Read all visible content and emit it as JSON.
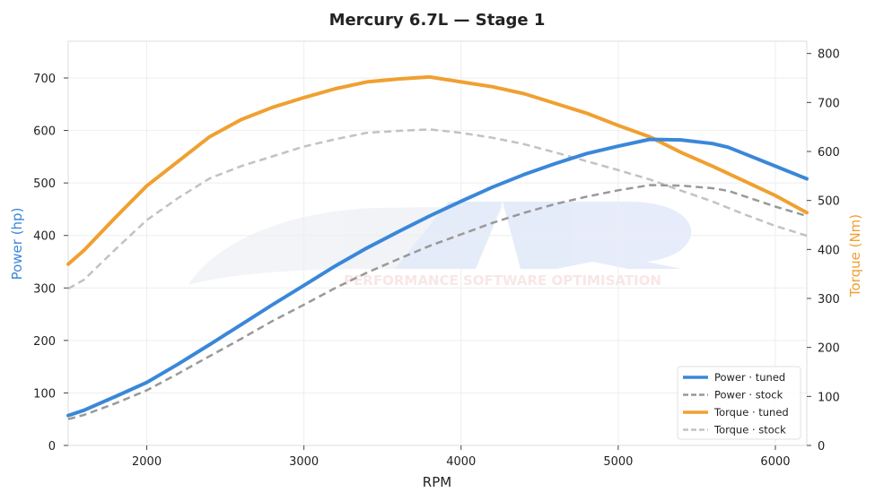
{
  "chart_data": {
    "type": "line",
    "title": "Mercury 6.7L — Stage 1",
    "xlabel": "RPM",
    "ylabel_left": "Power (hp)",
    "ylabel_right": "Torque (Nm)",
    "xlim": [
      1500,
      6200
    ],
    "ylim_left": [
      0,
      770
    ],
    "ylim_right": [
      0,
      825
    ],
    "x_ticks": [
      2000,
      3000,
      4000,
      5000,
      6000
    ],
    "y_ticks_left": [
      0,
      100,
      200,
      300,
      400,
      500,
      600,
      700
    ],
    "y_ticks_right": [
      0,
      100,
      200,
      300,
      400,
      500,
      600,
      700,
      800
    ],
    "grid": true,
    "legend_position": "bottom-right",
    "watermark_text": "PERFORMANCE SOFTWARE OPTIMISATION",
    "series": [
      {
        "name": "Power · tuned",
        "axis": "left",
        "color": "#3a87d9",
        "dash": "solid",
        "x": [
          1500,
          1600,
          1800,
          2000,
          2200,
          2400,
          2600,
          2800,
          3000,
          3200,
          3400,
          3600,
          3800,
          4000,
          4200,
          4400,
          4600,
          4800,
          5000,
          5200,
          5400,
          5600,
          5700,
          5800,
          6000,
          6200
        ],
        "y": [
          57,
          67,
          93,
          120,
          155,
          192,
          230,
          268,
          305,
          342,
          376,
          407,
          437,
          465,
          492,
          516,
          537,
          556,
          570,
          583,
          582,
          575,
          568,
          556,
          532,
          508
        ]
      },
      {
        "name": "Power · stock",
        "axis": "left",
        "color": "#999999",
        "dash": "dashed",
        "x": [
          1500,
          1600,
          1800,
          2000,
          2200,
          2400,
          2600,
          2800,
          3000,
          3200,
          3400,
          3600,
          3800,
          4000,
          4200,
          4400,
          4600,
          4800,
          5000,
          5200,
          5400,
          5600,
          5700,
          5800,
          6000,
          6200
        ],
        "y": [
          50,
          58,
          80,
          105,
          137,
          170,
          203,
          237,
          268,
          300,
          329,
          355,
          380,
          402,
          424,
          443,
          460,
          474,
          486,
          496,
          495,
          490,
          485,
          475,
          455,
          437
        ]
      },
      {
        "name": "Torque · tuned",
        "axis": "right",
        "color": "#f0a030",
        "dash": "solid",
        "x": [
          1500,
          1600,
          1800,
          2000,
          2200,
          2400,
          2600,
          2800,
          3000,
          3200,
          3400,
          3600,
          3800,
          4000,
          4200,
          4400,
          4600,
          4800,
          5000,
          5200,
          5400,
          5600,
          5800,
          6000,
          6200
        ],
        "y": [
          370,
          398,
          465,
          530,
          580,
          630,
          665,
          690,
          710,
          728,
          742,
          748,
          752,
          742,
          732,
          718,
          698,
          678,
          653,
          630,
          598,
          570,
          540,
          510,
          475
        ]
      },
      {
        "name": "Torque · stock",
        "axis": "right",
        "color": "#c2c2c2",
        "dash": "dashed",
        "x": [
          1500,
          1600,
          1800,
          2000,
          2200,
          2400,
          2600,
          2800,
          3000,
          3200,
          3400,
          3600,
          3800,
          4000,
          4200,
          4400,
          4600,
          4800,
          5000,
          5200,
          5400,
          5600,
          5800,
          6000,
          6200
        ],
        "y": [
          320,
          338,
          400,
          460,
          505,
          545,
          570,
          590,
          610,
          625,
          638,
          642,
          645,
          638,
          628,
          615,
          598,
          580,
          562,
          543,
          520,
          498,
          472,
          448,
          428
        ]
      }
    ]
  }
}
